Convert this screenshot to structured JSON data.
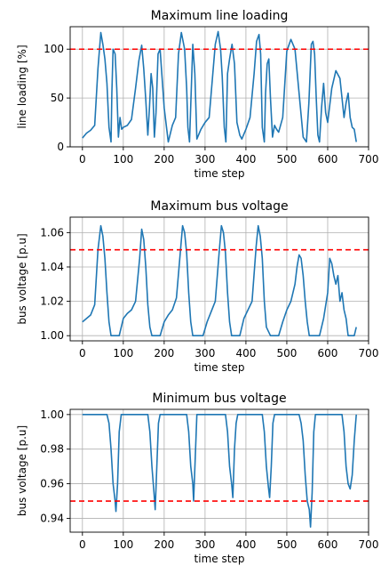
{
  "chart_data": [
    {
      "type": "line",
      "title": "Maximum line loading",
      "xlabel": "time step",
      "ylabel": "line loading [%]",
      "xlim": [
        -30,
        700
      ],
      "ylim": [
        0,
        123
      ],
      "xticks": [
        0,
        100,
        200,
        300,
        400,
        500,
        600,
        700
      ],
      "yticks": [
        0,
        50,
        100
      ],
      "ytick_labels": [
        "0",
        "50",
        "100"
      ],
      "grid": true,
      "threshold": 100,
      "threshold_style": "red-dashed",
      "series": [
        {
          "color": "#1f77b4",
          "x": [
            0,
            10,
            20,
            30,
            38,
            45,
            50,
            55,
            60,
            65,
            70,
            72,
            75,
            80,
            84,
            88,
            92,
            96,
            100,
            110,
            120,
            130,
            138,
            145,
            150,
            155,
            160,
            164,
            168,
            172,
            176,
            180,
            185,
            190,
            200,
            210,
            220,
            228,
            235,
            242,
            250,
            255,
            258,
            262,
            266,
            270,
            275,
            280,
            290,
            300,
            310,
            318,
            325,
            332,
            338,
            342,
            347,
            351,
            355,
            360,
            366,
            372,
            378,
            385,
            390,
            400,
            410,
            420,
            426,
            432,
            436,
            440,
            445,
            448,
            452,
            456,
            460,
            465,
            470,
            475,
            480,
            490,
            500,
            510,
            520,
            530,
            540,
            548,
            554,
            560,
            564,
            568,
            572,
            576,
            580,
            585,
            590,
            595,
            600,
            610,
            620,
            630,
            640,
            645,
            650,
            655,
            660,
            665,
            670
          ],
          "y": [
            9,
            14,
            17,
            22,
            80,
            117,
            105,
            90,
            65,
            20,
            5,
            55,
            100,
            95,
            60,
            10,
            30,
            18,
            20,
            22,
            28,
            60,
            88,
            104,
            80,
            48,
            12,
            40,
            75,
            60,
            10,
            35,
            95,
            100,
            40,
            5,
            22,
            30,
            95,
            117,
            100,
            60,
            20,
            5,
            55,
            105,
            75,
            8,
            18,
            25,
            30,
            70,
            105,
            118,
            100,
            72,
            20,
            5,
            75,
            90,
            105,
            85,
            25,
            12,
            8,
            18,
            30,
            75,
            108,
            115,
            95,
            20,
            5,
            55,
            85,
            90,
            50,
            10,
            22,
            18,
            15,
            30,
            98,
            110,
            100,
            55,
            10,
            5,
            45,
            105,
            108,
            95,
            50,
            12,
            5,
            40,
            65,
            35,
            25,
            60,
            78,
            70,
            30,
            45,
            55,
            30,
            20,
            18,
            5
          ]
        }
      ]
    },
    {
      "type": "line",
      "title": "Maximum bus voltage",
      "xlabel": "time step",
      "ylabel": "bus voltage [p.u]",
      "xlim": [
        -30,
        700
      ],
      "ylim": [
        0.997,
        1.069
      ],
      "xticks": [
        0,
        100,
        200,
        300,
        400,
        500,
        600,
        700
      ],
      "yticks": [
        1.0,
        1.02,
        1.04,
        1.06
      ],
      "ytick_labels": [
        "1.00",
        "1.02",
        "1.04",
        "1.06"
      ],
      "grid": true,
      "threshold": 1.05,
      "threshold_style": "red-dashed",
      "series": [
        {
          "color": "#1f77b4",
          "x": [
            0,
            10,
            20,
            30,
            38,
            45,
            50,
            55,
            60,
            65,
            70,
            75,
            90,
            100,
            110,
            120,
            130,
            140,
            145,
            150,
            155,
            160,
            165,
            170,
            175,
            190,
            200,
            210,
            220,
            230,
            240,
            245,
            250,
            255,
            260,
            265,
            270,
            285,
            295,
            305,
            315,
            325,
            335,
            340,
            345,
            350,
            355,
            360,
            365,
            375,
            385,
            395,
            405,
            415,
            425,
            430,
            435,
            440,
            445,
            450,
            460,
            470,
            480,
            490,
            500,
            510,
            520,
            525,
            530,
            535,
            540,
            545,
            550,
            555,
            560,
            570,
            580,
            590,
            600,
            605,
            610,
            615,
            620,
            625,
            630,
            635,
            640,
            645,
            650,
            655,
            660,
            665,
            670
          ],
          "y": [
            1.008,
            1.01,
            1.012,
            1.018,
            1.05,
            1.064,
            1.058,
            1.045,
            1.025,
            1.008,
            1.0,
            1.0,
            1.0,
            1.01,
            1.013,
            1.015,
            1.02,
            1.045,
            1.062,
            1.056,
            1.04,
            1.018,
            1.005,
            1.0,
            1.0,
            1.0,
            1.008,
            1.012,
            1.015,
            1.022,
            1.05,
            1.064,
            1.06,
            1.048,
            1.025,
            1.008,
            1.0,
            1.0,
            1.0,
            1.008,
            1.014,
            1.02,
            1.05,
            1.064,
            1.06,
            1.048,
            1.025,
            1.008,
            1.0,
            1.0,
            1.0,
            1.01,
            1.015,
            1.02,
            1.052,
            1.064,
            1.058,
            1.045,
            1.02,
            1.005,
            1.0,
            1.0,
            1.0,
            1.008,
            1.015,
            1.02,
            1.03,
            1.04,
            1.047,
            1.045,
            1.035,
            1.02,
            1.008,
            1.0,
            1.0,
            1.0,
            1.0,
            1.01,
            1.025,
            1.045,
            1.042,
            1.035,
            1.03,
            1.035,
            1.02,
            1.025,
            1.015,
            1.01,
            1.0,
            1.0,
            1.0,
            1.0,
            1.005
          ]
        }
      ]
    },
    {
      "type": "line",
      "title": "Minimum bus voltage",
      "xlabel": "time step",
      "ylabel": "bus voltage [p.u]",
      "xlim": [
        -30,
        700
      ],
      "ylim": [
        0.932,
        1.003
      ],
      "xticks": [
        0,
        100,
        200,
        300,
        400,
        500,
        600,
        700
      ],
      "yticks": [
        0.94,
        0.96,
        0.98,
        1.0
      ],
      "ytick_labels": [
        "0.94",
        "0.96",
        "0.98",
        "1.00"
      ],
      "grid": true,
      "threshold": 0.95,
      "threshold_style": "red-dashed",
      "series": [
        {
          "color": "#1f77b4",
          "x": [
            0,
            60,
            65,
            70,
            75,
            80,
            82,
            86,
            90,
            95,
            160,
            165,
            170,
            175,
            178,
            182,
            186,
            190,
            255,
            260,
            265,
            270,
            272,
            276,
            280,
            350,
            355,
            360,
            365,
            368,
            372,
            376,
            380,
            440,
            445,
            450,
            455,
            458,
            462,
            466,
            470,
            530,
            535,
            540,
            545,
            550,
            555,
            558,
            562,
            566,
            570,
            635,
            640,
            645,
            650,
            655,
            660,
            665,
            670
          ],
          "y": [
            1.0,
            1.0,
            0.995,
            0.98,
            0.96,
            0.95,
            0.944,
            0.96,
            0.99,
            1.0,
            1.0,
            0.99,
            0.97,
            0.955,
            0.945,
            0.97,
            0.995,
            1.0,
            1.0,
            0.99,
            0.97,
            0.96,
            0.95,
            0.975,
            1.0,
            1.0,
            0.99,
            0.97,
            0.96,
            0.952,
            0.98,
            0.995,
            1.0,
            1.0,
            0.99,
            0.97,
            0.958,
            0.952,
            0.97,
            0.995,
            1.0,
            1.0,
            0.995,
            0.985,
            0.965,
            0.95,
            0.945,
            0.935,
            0.955,
            0.99,
            1.0,
            1.0,
            0.99,
            0.97,
            0.96,
            0.957,
            0.965,
            0.985,
            1.0
          ]
        }
      ]
    }
  ]
}
